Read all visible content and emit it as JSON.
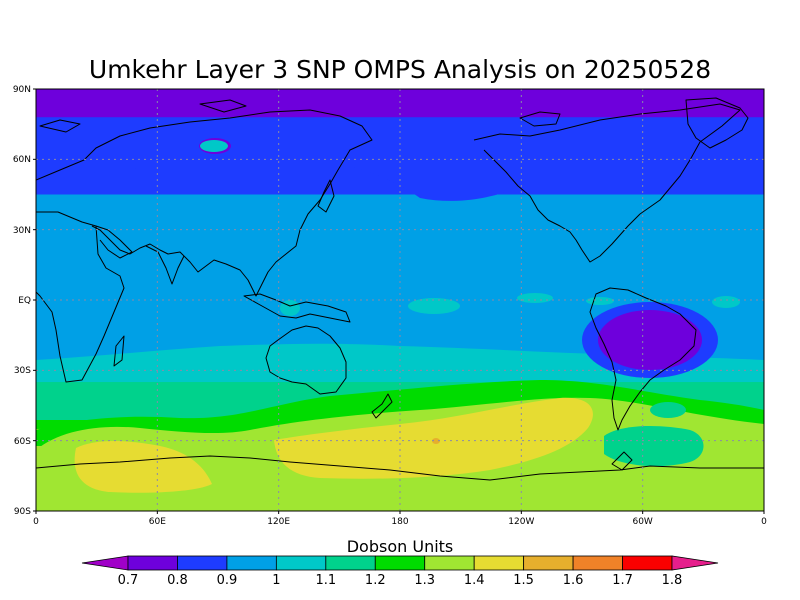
{
  "title": "Umkehr Layer 3 SNP OMPS Analysis on 20250528",
  "colorbar": {
    "title": "Dobson Units",
    "levels": [
      "0.7",
      "0.8",
      "0.9",
      "1",
      "1.1",
      "1.2",
      "1.3",
      "1.4",
      "1.5",
      "1.6",
      "1.7",
      "1.8"
    ],
    "colors": [
      "#a000c8",
      "#6e00dc",
      "#1e3cff",
      "#00a0e6",
      "#00c8c8",
      "#00d28c",
      "#00dc00",
      "#a0e632",
      "#e6dc32",
      "#e6af2d",
      "#f08228",
      "#fa0000",
      "#e61e8c"
    ]
  },
  "map": {
    "lat_ticks": [
      "90N",
      "60N",
      "30N",
      "EQ",
      "30S",
      "60S",
      "90S"
    ],
    "lon_ticks": [
      "0",
      "60E",
      "120E",
      "180",
      "120W",
      "60W",
      "0"
    ]
  },
  "chart_data": {
    "type": "heatmap",
    "title": "Umkehr Layer 3 SNP OMPS Analysis on 20250528",
    "units": "Dobson Units",
    "projection": "cylindrical equidistant, 0 to 360 longitude",
    "lat_range": [
      -90,
      90
    ],
    "lon_range": [
      0,
      360
    ],
    "contour_levels": [
      0.7,
      0.8,
      0.9,
      1.0,
      1.1,
      1.2,
      1.3,
      1.4,
      1.5,
      1.6,
      1.7,
      1.8
    ],
    "zonal_bands": [
      {
        "lat": [
          78,
          90
        ],
        "value": 0.7
      },
      {
        "lat": [
          45,
          78
        ],
        "value": 0.8
      },
      {
        "lat": [
          -30,
          45
        ],
        "value": 0.9
      },
      {
        "lat": [
          -35,
          -30
        ],
        "value": 1.0
      },
      {
        "lat": [
          -46,
          -35
        ],
        "value": 1.1
      },
      {
        "lat": [
          -55,
          -46
        ],
        "value": 1.2
      },
      {
        "lat": [
          -90,
          -55
        ],
        "value": 1.3
      }
    ],
    "features": [
      {
        "name": "low over South America",
        "lon_center": 308,
        "lat_center": -18,
        "value": 0.7
      },
      {
        "name": "high south Indian Ocean",
        "lon_center": 50,
        "lat_center": -70,
        "value": 1.4
      },
      {
        "name": "high south Pacific",
        "lon_center": 195,
        "lat_center": -60,
        "value": 1.4
      },
      {
        "name": "maximum spot",
        "lon": 200,
        "lat": -62,
        "value": 1.5
      }
    ]
  }
}
